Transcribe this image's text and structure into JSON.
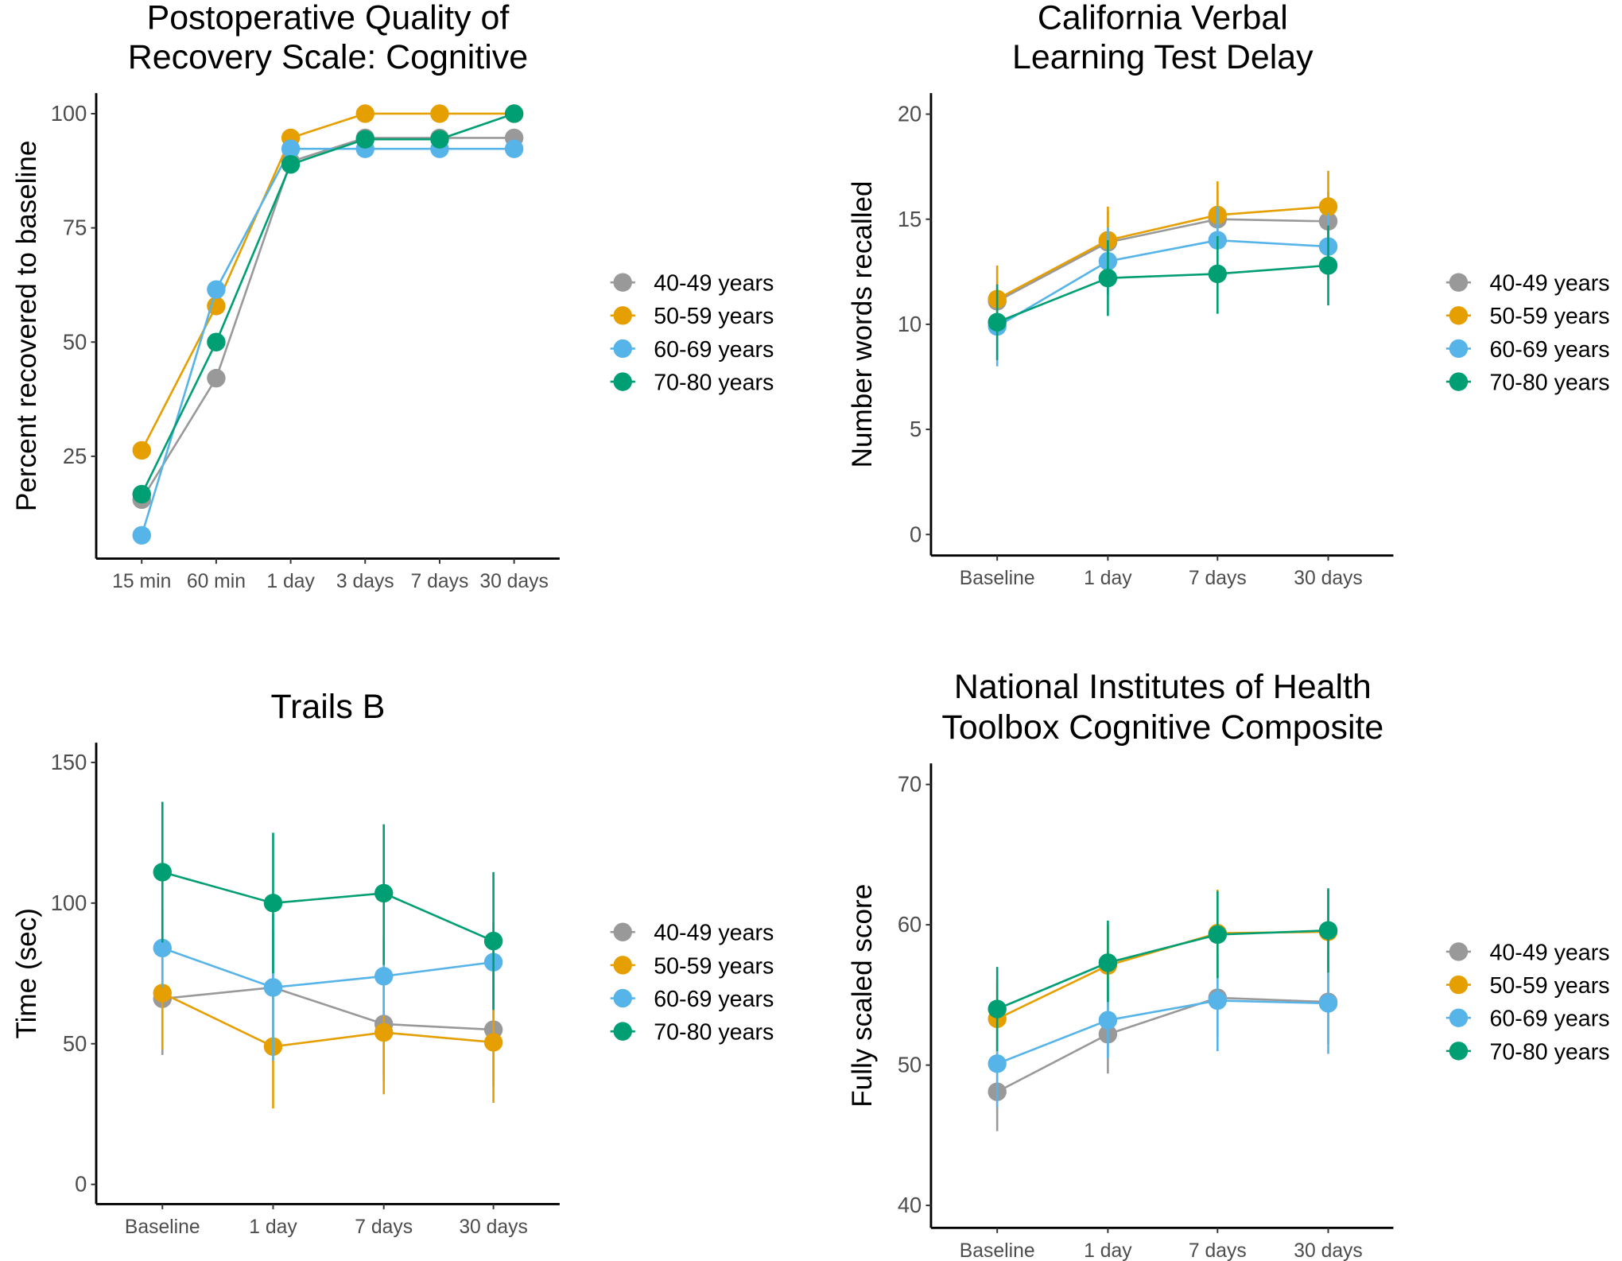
{
  "legend": [
    {
      "label": "40-49 years",
      "color": "#999999"
    },
    {
      "label": "50-59 years",
      "color": "#E69F00"
    },
    {
      "label": "60-69 years",
      "color": "#56B4E9"
    },
    {
      "label": "70-80 years",
      "color": "#009E73"
    }
  ],
  "chart_data": [
    {
      "type": "line",
      "title": [
        "Postoperative Quality of",
        "Recovery Scale: Cognitive"
      ],
      "xlabel": "",
      "ylabel": "Percent recovered to baseline",
      "categories": [
        "15 min",
        "60 min",
        "1 day",
        "3 days",
        "7 days",
        "30 days"
      ],
      "yticks": [
        25,
        50,
        75,
        100
      ],
      "ylim": [
        2.6,
        104.5
      ],
      "legend_position": "right",
      "series": [
        {
          "name": "40-49 years",
          "values": [
            15.5,
            42.1,
            89.5,
            94.7,
            94.7,
            94.7
          ]
        },
        {
          "name": "50-59 years",
          "values": [
            26.3,
            57.9,
            94.7,
            100,
            100,
            100
          ]
        },
        {
          "name": "60-69 years",
          "values": [
            7.7,
            61.5,
            92.3,
            92.3,
            92.3,
            92.3
          ]
        },
        {
          "name": "70-80 years",
          "values": [
            16.7,
            50.0,
            88.9,
            94.4,
            94.4,
            100
          ]
        }
      ]
    },
    {
      "type": "line",
      "title": [
        "California Verbal",
        "Learning Test Delay"
      ],
      "xlabel": "",
      "ylabel": "Number words recalled",
      "categories": [
        "Baseline",
        "1 day",
        "7 days",
        "30 days"
      ],
      "yticks": [
        0,
        5,
        10,
        15,
        20
      ],
      "ylim": [
        -1,
        21
      ],
      "legend_position": "right",
      "series": [
        {
          "name": "40-49 years",
          "values": [
            11.1,
            13.9,
            15.0,
            14.9
          ],
          "lower": [
            9.5,
            12.4,
            13.6,
            13.4
          ],
          "upper": [
            12.7,
            15.4,
            16.4,
            16.3
          ]
        },
        {
          "name": "50-59 years",
          "values": [
            11.2,
            14.0,
            15.2,
            15.6
          ],
          "lower": [
            9.6,
            12.4,
            13.5,
            14.0
          ],
          "upper": [
            12.8,
            15.6,
            16.8,
            17.3
          ]
        },
        {
          "name": "60-69 years",
          "values": [
            9.9,
            13.0,
            14.0,
            13.7
          ],
          "lower": [
            8.0,
            11.4,
            12.4,
            12.1
          ],
          "upper": [
            11.8,
            14.6,
            15.6,
            15.3
          ]
        },
        {
          "name": "70-80 years",
          "values": [
            10.1,
            12.2,
            12.4,
            12.8
          ],
          "lower": [
            8.3,
            10.4,
            10.5,
            10.9
          ],
          "upper": [
            11.9,
            14.0,
            14.2,
            14.7
          ]
        }
      ]
    },
    {
      "type": "line",
      "title": [
        "Trails B"
      ],
      "xlabel": "",
      "ylabel": "Time (sec)",
      "categories": [
        "Baseline",
        "1 day",
        "7 days",
        "30 days"
      ],
      "yticks": [
        0,
        50,
        100,
        150
      ],
      "ylim": [
        -7,
        157
      ],
      "legend_position": "right",
      "series": [
        {
          "name": "40-49 years",
          "values": [
            66,
            70,
            57,
            55
          ],
          "lower": [
            46,
            50,
            37,
            35
          ],
          "upper": [
            86,
            90,
            77,
            75
          ]
        },
        {
          "name": "50-59 years",
          "values": [
            68,
            49,
            54,
            50.5
          ],
          "lower": [
            48,
            27,
            32,
            29
          ],
          "upper": [
            88,
            71,
            76,
            72
          ]
        },
        {
          "name": "60-69 years",
          "values": [
            84,
            70,
            74,
            79
          ],
          "lower": [
            70,
            44,
            60,
            66
          ],
          "upper": [
            98,
            96,
            88,
            93
          ]
        },
        {
          "name": "70-80 years",
          "values": [
            111,
            100,
            103.5,
            86.5
          ],
          "lower": [
            86,
            75,
            78,
            62
          ],
          "upper": [
            136,
            125,
            128,
            111
          ]
        }
      ]
    },
    {
      "type": "line",
      "title": [
        "National Institutes of Health",
        "Toolbox Cognitive Composite"
      ],
      "xlabel": "",
      "ylabel": "Fully scaled score",
      "categories": [
        "Baseline",
        "1 day",
        "7 days",
        "30 days"
      ],
      "yticks": [
        40,
        50,
        60,
        70
      ],
      "ylim": [
        38.4,
        71.5
      ],
      "legend_position": "right",
      "series": [
        {
          "name": "40-49 years",
          "values": [
            48.1,
            52.2,
            54.8,
            54.5
          ],
          "lower": [
            45.3,
            49.4,
            52.0,
            51.5
          ],
          "upper": [
            51.0,
            55.2,
            57.8,
            57.4
          ]
        },
        {
          "name": "50-59 years",
          "values": [
            53.3,
            57.1,
            59.4,
            59.5
          ],
          "lower": [
            50.5,
            54.0,
            56.2,
            56.5
          ],
          "upper": [
            56.0,
            60.0,
            62.5,
            62.5
          ]
        },
        {
          "name": "60-69 years",
          "values": [
            50.1,
            53.2,
            54.6,
            54.4
          ],
          "lower": [
            47.0,
            50.5,
            51.0,
            50.8
          ],
          "upper": [
            53.0,
            56.0,
            58.0,
            58.0
          ]
        },
        {
          "name": "70-80 years",
          "values": [
            54.0,
            57.3,
            59.3,
            59.6
          ],
          "lower": [
            51.0,
            54.5,
            56.2,
            56.6
          ],
          "upper": [
            57.0,
            60.3,
            62.4,
            62.6
          ]
        }
      ]
    }
  ]
}
